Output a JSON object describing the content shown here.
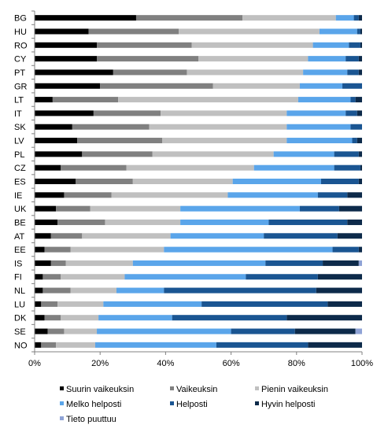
{
  "chart_data": {
    "type": "bar",
    "orientation": "horizontal",
    "stacked": "percent",
    "title": "",
    "xlabel": "",
    "ylabel": "",
    "xlim": [
      0,
      100
    ],
    "x_ticks": [
      "0%",
      "20%",
      "40%",
      "60%",
      "80%",
      "100%"
    ],
    "grid": false,
    "legend_position": "bottom",
    "categories": [
      "BG",
      "HU",
      "RO",
      "CY",
      "PT",
      "GR",
      "LT",
      "IT",
      "SK",
      "LV",
      "PL",
      "CZ",
      "ES",
      "IE",
      "UK",
      "BE",
      "AT",
      "EE",
      "IS",
      "FI",
      "NL",
      "LU",
      "DK",
      "SE",
      "NO"
    ],
    "series": [
      {
        "name": "Suurin vaikeuksin",
        "color": "#000000",
        "values": [
          31,
          16.5,
          19,
          19,
          24,
          20,
          5.5,
          18,
          11.5,
          13,
          14.5,
          8,
          12.5,
          9,
          6.5,
          7,
          5,
          3,
          5,
          2.5,
          2.5,
          2,
          3,
          4,
          2
        ]
      },
      {
        "name": "Vaikeuksin",
        "color": "#808080",
        "values": [
          32.5,
          27.5,
          29,
          31,
          22.5,
          34.5,
          20,
          20.5,
          23.5,
          26,
          21.5,
          20,
          17.5,
          14.5,
          10.5,
          14.5,
          9.5,
          8,
          4.5,
          5.5,
          8.5,
          5,
          5,
          5,
          4.5
        ]
      },
      {
        "name": "Pienin vaikeuksin",
        "color": "#c0c0c0",
        "values": [
          28.5,
          43,
          37,
          33.5,
          35.5,
          26.5,
          55,
          38.5,
          42,
          38,
          37,
          39,
          30.5,
          35.5,
          27.5,
          23,
          27,
          28.5,
          20.5,
          19.5,
          14,
          14,
          11.5,
          10,
          12
        ]
      },
      {
        "name": "Melko helposti",
        "color": "#5aa5ea",
        "values": [
          5.5,
          11.5,
          11,
          11.5,
          13.5,
          13,
          16,
          18,
          19.5,
          20,
          18.5,
          24.5,
          27,
          27.5,
          36.5,
          27,
          28.5,
          51.5,
          40.5,
          37,
          14.5,
          30,
          22.5,
          41,
          37
        ]
      },
      {
        "name": "Helposti",
        "color": "#1a5592",
        "values": [
          1.5,
          1,
          3.5,
          4,
          3.5,
          6,
          1.5,
          3.5,
          3.5,
          1.5,
          7.5,
          8,
          11.5,
          9,
          12,
          24,
          22.5,
          8,
          17.5,
          22,
          46.5,
          38.5,
          35,
          19.5,
          28
        ]
      },
      {
        "name": "Hyvin helposti",
        "color": "#0d2a4a",
        "values": [
          1,
          0.5,
          0.5,
          1,
          1,
          0,
          2,
          1.5,
          0,
          1.5,
          1,
          0.5,
          1,
          4.5,
          7,
          4.5,
          7.5,
          1,
          11,
          13.5,
          14,
          10.5,
          23,
          18.5,
          16.5
        ]
      },
      {
        "name": "Tieto puuttuu",
        "color": "#8fa3d6",
        "values": [
          0,
          0,
          0,
          0,
          0,
          0,
          0,
          0,
          0,
          0,
          0,
          0,
          0,
          0,
          0,
          0,
          0,
          0,
          1,
          0,
          0,
          0,
          0,
          2,
          0
        ]
      }
    ]
  }
}
